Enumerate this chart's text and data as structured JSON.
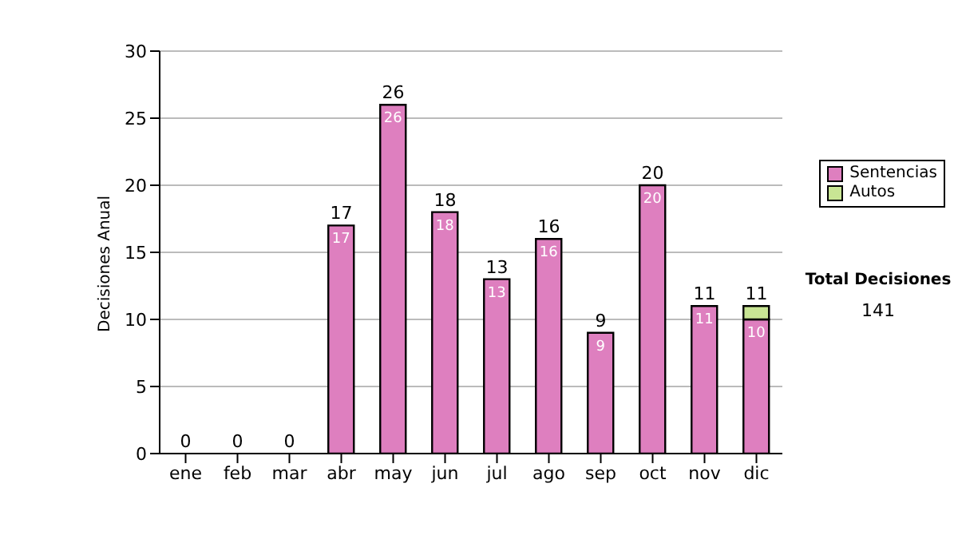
{
  "chart_data": {
    "type": "bar",
    "ylabel": "Decisiones Anual",
    "categories": [
      "ene",
      "feb",
      "mar",
      "abr",
      "may",
      "jun",
      "jul",
      "ago",
      "sep",
      "oct",
      "nov",
      "dic"
    ],
    "series": [
      {
        "name": "Sentencias",
        "color": "#de7fbf",
        "values": [
          0,
          0,
          0,
          17,
          26,
          18,
          13,
          16,
          9,
          20,
          11,
          10
        ],
        "value_labels": [
          null,
          null,
          null,
          "17",
          "26",
          "18",
          "13",
          "16",
          "9",
          "20",
          "11",
          "10"
        ]
      },
      {
        "name": "Autos",
        "color": "#c8e594",
        "values": [
          0,
          0,
          0,
          0,
          0,
          0,
          0,
          0,
          0,
          0,
          0,
          1
        ]
      }
    ],
    "stacked": true,
    "totals": [
      "0",
      "0",
      "0",
      "17",
      "26",
      "18",
      "13",
      "16",
      "9",
      "20",
      "11",
      "11"
    ],
    "ylim": [
      0,
      30
    ],
    "yticks": [
      0,
      5,
      10,
      15,
      20,
      25,
      30
    ],
    "grid": "y",
    "legend": "right",
    "annotations": [
      "Total Decisiones",
      "141"
    ]
  }
}
